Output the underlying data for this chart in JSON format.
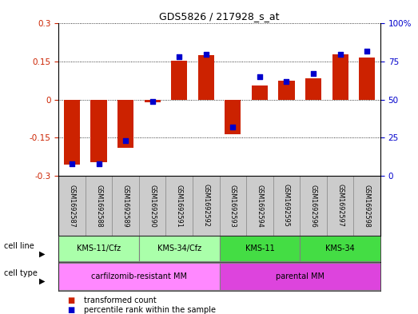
{
  "title": "GDS5826 / 217928_s_at",
  "samples": [
    "GSM1692587",
    "GSM1692588",
    "GSM1692589",
    "GSM1692590",
    "GSM1692591",
    "GSM1692592",
    "GSM1692593",
    "GSM1692594",
    "GSM1692595",
    "GSM1692596",
    "GSM1692597",
    "GSM1692598"
  ],
  "transformed_count": [
    -0.255,
    -0.245,
    -0.19,
    -0.01,
    0.155,
    0.175,
    -0.135,
    0.055,
    0.075,
    0.085,
    0.18,
    0.165
  ],
  "percentile_rank": [
    8,
    8,
    23,
    49,
    78,
    80,
    32,
    65,
    62,
    67,
    80,
    82
  ],
  "cell_line_groups": [
    {
      "label": "KMS-11/Cfz",
      "start": 0,
      "end": 2,
      "color": "#aaffaa"
    },
    {
      "label": "KMS-34/Cfz",
      "start": 3,
      "end": 5,
      "color": "#aaffaa"
    },
    {
      "label": "KMS-11",
      "start": 6,
      "end": 8,
      "color": "#44dd44"
    },
    {
      "label": "KMS-34",
      "start": 9,
      "end": 11,
      "color": "#44dd44"
    }
  ],
  "cell_type_groups": [
    {
      "label": "carfilzomib-resistant MM",
      "start": 0,
      "end": 5,
      "color": "#ff88ff"
    },
    {
      "label": "parental MM",
      "start": 6,
      "end": 11,
      "color": "#dd44dd"
    }
  ],
  "ylim": [
    -0.3,
    0.3
  ],
  "yticks_left": [
    -0.3,
    -0.15,
    0,
    0.15,
    0.3
  ],
  "ytick_labels_left": [
    "-0.3",
    "-0.15",
    "0",
    "0.15",
    "0.3"
  ],
  "yticks_right": [
    0,
    25,
    50,
    75,
    100
  ],
  "ytick_labels_right": [
    "0",
    "25",
    "50",
    "75",
    "100%"
  ],
  "bar_color": "#cc2200",
  "dot_color": "#0000cc",
  "sample_bg": "#cccccc",
  "legend_bar_label": "transformed count",
  "legend_dot_label": "percentile rank within the sample"
}
